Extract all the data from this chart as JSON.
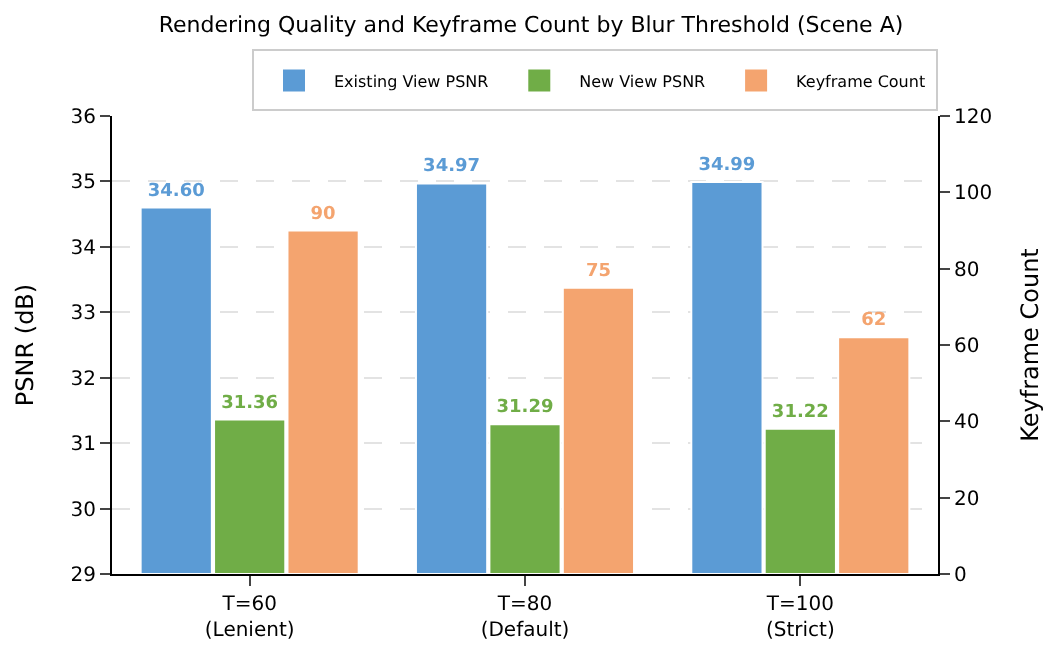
{
  "chart_data": {
    "type": "bar",
    "title": "Rendering Quality and Keyframe Count by Blur Threshold (Scene A)",
    "categories": [
      "T=60\n(Lenient)",
      "T=80\n(Default)",
      "T=100\n(Strict)"
    ],
    "series": [
      {
        "name": "Existing View PSNR",
        "color": "#5b9bd5",
        "values": [
          34.6,
          34.97,
          34.99
        ],
        "value_labels": [
          "34.60",
          "34.97",
          "34.99"
        ]
      },
      {
        "name": "New View PSNR",
        "color": "#70ad47",
        "values": [
          31.36,
          31.29,
          31.22
        ],
        "value_labels": [
          "31.36",
          "31.29",
          "31.22"
        ]
      },
      {
        "name": "Keyframe Count",
        "color": "#f4a46f",
        "axis": "y2",
        "values": [
          90,
          75,
          62
        ],
        "value_labels": [
          "90",
          "75",
          "62"
        ]
      }
    ],
    "ylabel": "PSNR (dB)",
    "y2label": "Keyframe Count",
    "ylim": [
      29,
      36
    ],
    "yticks": [
      29,
      30,
      31,
      32,
      33,
      34,
      35,
      36
    ],
    "y2lim": [
      0,
      120
    ],
    "y2ticks": [
      0,
      20,
      40,
      60,
      80,
      100,
      120
    ],
    "grid": "y",
    "legend": "top right"
  }
}
